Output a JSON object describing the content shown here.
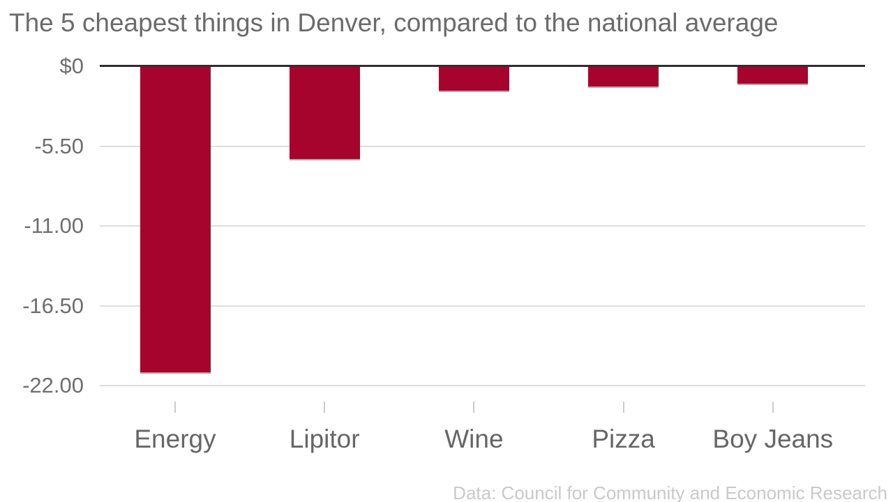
{
  "title": "The 5 cheapest things in Denver, compared to the national average",
  "source": "Data: Council for Community and Economic Research",
  "colors": {
    "background": "#ffffff",
    "bar": "#a6042c",
    "bar_bottom_edge": "#dc93a6",
    "title_text": "#6b6b6b",
    "axis_text": "#6e6e6e",
    "category_text": "#666666",
    "gridline": "#dddddd",
    "baseline": "#2e2e2e",
    "tick": "#cccccc",
    "source_text": "#c9c9c9"
  },
  "chart_data": {
    "type": "bar",
    "title": "The 5 cheapest things in Denver, compared to the national average",
    "categories": [
      "Energy",
      "Lipitor",
      "Wine",
      "Pizza",
      "Boy Jeans"
    ],
    "values": [
      -21.1,
      -6.4,
      -1.7,
      -1.4,
      -1.2
    ],
    "value_unit": "$ difference vs national average",
    "xlabel": "",
    "ylabel": "",
    "ylim": [
      -22,
      0
    ],
    "yticks": [
      {
        "label": "$0",
        "value": 0
      },
      {
        "label": "-5.50",
        "value": -5.5
      },
      {
        "label": "-11.00",
        "value": -11
      },
      {
        "label": "-16.50",
        "value": -16.5
      },
      {
        "label": "-22.00",
        "value": -22
      }
    ],
    "grid": "horizontal",
    "legend": "none",
    "orientation": "vertical-negative",
    "source": "Data: Council for Community and Economic Research"
  }
}
